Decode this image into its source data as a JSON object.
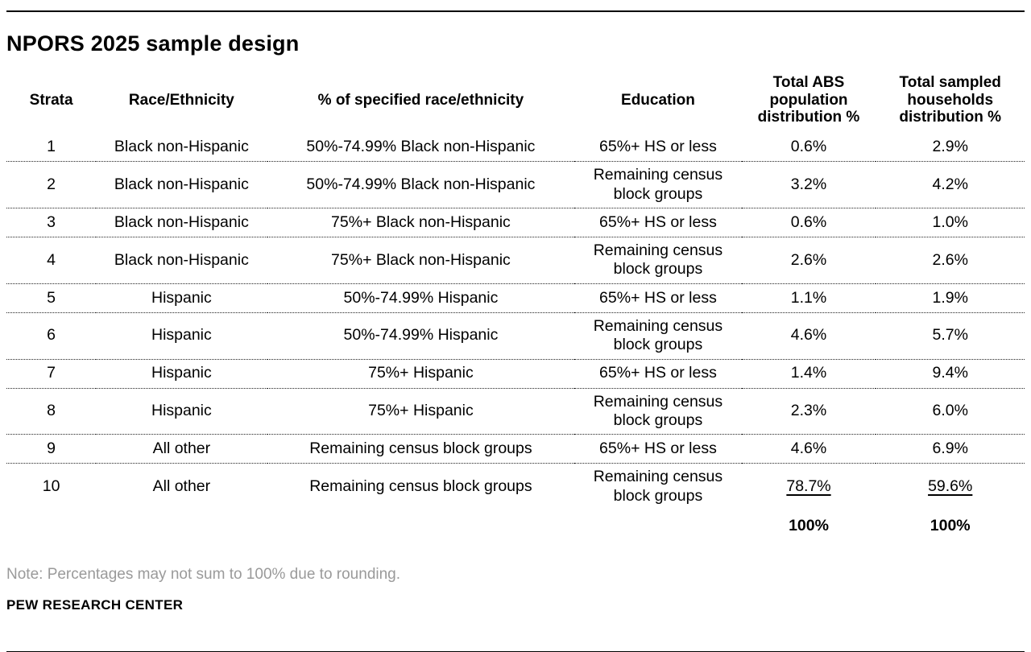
{
  "meta": {
    "title": "NPORS 2025 sample design",
    "note": "Note: Percentages may not sum to 100% due to rounding.",
    "source": "PEW RESEARCH CENTER"
  },
  "colors": {
    "text": "#000000",
    "note_gray": "#9a9a9a",
    "rule_black": "#000000"
  },
  "table": {
    "columns": [
      "Strata",
      "Race/Ethnicity",
      "% of specified race/ethnicity",
      "Education",
      "Total ABS population distribution %",
      "Total sampled households distribution %"
    ],
    "rows": [
      {
        "strata": "1",
        "race": "Black non-Hispanic",
        "pct": "50%-74.99% Black non-Hispanic",
        "education": "65%+ HS or less",
        "abs": "0.6%",
        "sampled": "2.9%",
        "underline": false
      },
      {
        "strata": "2",
        "race": "Black non-Hispanic",
        "pct": "50%-74.99% Black non-Hispanic",
        "education": "Remaining census block groups",
        "abs": "3.2%",
        "sampled": "4.2%",
        "underline": false
      },
      {
        "strata": "3",
        "race": "Black non-Hispanic",
        "pct": "75%+ Black non-Hispanic",
        "education": "65%+ HS or less",
        "abs": "0.6%",
        "sampled": "1.0%",
        "underline": false
      },
      {
        "strata": "4",
        "race": "Black non-Hispanic",
        "pct": "75%+ Black non-Hispanic",
        "education": "Remaining census block groups",
        "abs": "2.6%",
        "sampled": "2.6%",
        "underline": false
      },
      {
        "strata": "5",
        "race": "Hispanic",
        "pct": "50%-74.99% Hispanic",
        "education": "65%+ HS or less",
        "abs": "1.1%",
        "sampled": "1.9%",
        "underline": false
      },
      {
        "strata": "6",
        "race": "Hispanic",
        "pct": "50%-74.99% Hispanic",
        "education": "Remaining census block groups",
        "abs": "4.6%",
        "sampled": "5.7%",
        "underline": false
      },
      {
        "strata": "7",
        "race": "Hispanic",
        "pct": "75%+ Hispanic",
        "education": "65%+ HS or less",
        "abs": "1.4%",
        "sampled": "9.4%",
        "underline": false
      },
      {
        "strata": "8",
        "race": "Hispanic",
        "pct": "75%+ Hispanic",
        "education": "Remaining census block groups",
        "abs": "2.3%",
        "sampled": "6.0%",
        "underline": false
      },
      {
        "strata": "9",
        "race": "All other",
        "pct": "Remaining census block groups",
        "education": "65%+ HS or less",
        "abs": "4.6%",
        "sampled": "6.9%",
        "underline": false
      },
      {
        "strata": "10",
        "race": "All other",
        "pct": "Remaining census block groups",
        "education": "Remaining census block groups",
        "abs": "78.7%",
        "sampled": "59.6%",
        "underline": true
      }
    ],
    "totals": {
      "abs": "100%",
      "sampled": "100%"
    }
  },
  "chart_data": {
    "type": "table",
    "title": "NPORS 2025 sample design",
    "columns": [
      "Strata",
      "Race/Ethnicity",
      "% of specified race/ethnicity",
      "Education",
      "Total ABS population distribution %",
      "Total sampled households distribution %"
    ],
    "rows": [
      [
        "1",
        "Black non-Hispanic",
        "50%-74.99% Black non-Hispanic",
        "65%+ HS or less",
        "0.6%",
        "2.9%"
      ],
      [
        "2",
        "Black non-Hispanic",
        "50%-74.99% Black non-Hispanic",
        "Remaining census block groups",
        "3.2%",
        "4.2%"
      ],
      [
        "3",
        "Black non-Hispanic",
        "75%+ Black non-Hispanic",
        "65%+ HS or less",
        "0.6%",
        "1.0%"
      ],
      [
        "4",
        "Black non-Hispanic",
        "75%+ Black non-Hispanic",
        "Remaining census block groups",
        "2.6%",
        "2.6%"
      ],
      [
        "5",
        "Hispanic",
        "50%-74.99% Hispanic",
        "65%+ HS or less",
        "1.1%",
        "1.9%"
      ],
      [
        "6",
        "Hispanic",
        "50%-74.99% Hispanic",
        "Remaining census block groups",
        "4.6%",
        "5.7%"
      ],
      [
        "7",
        "Hispanic",
        "75%+ Hispanic",
        "65%+ HS or less",
        "1.4%",
        "9.4%"
      ],
      [
        "8",
        "Hispanic",
        "75%+ Hispanic",
        "Remaining census block groups",
        "2.3%",
        "6.0%"
      ],
      [
        "9",
        "All other",
        "Remaining census block groups",
        "65%+ HS or less",
        "4.6%",
        "6.9%"
      ],
      [
        "10",
        "All other",
        "Remaining census block groups",
        "Remaining census block groups",
        "78.7%",
        "59.6%"
      ]
    ],
    "totals_row": [
      "",
      "",
      "",
      "",
      "100%",
      "100%"
    ],
    "note": "Note: Percentages may not sum to 100% due to rounding.",
    "source": "PEW RESEARCH CENTER"
  }
}
